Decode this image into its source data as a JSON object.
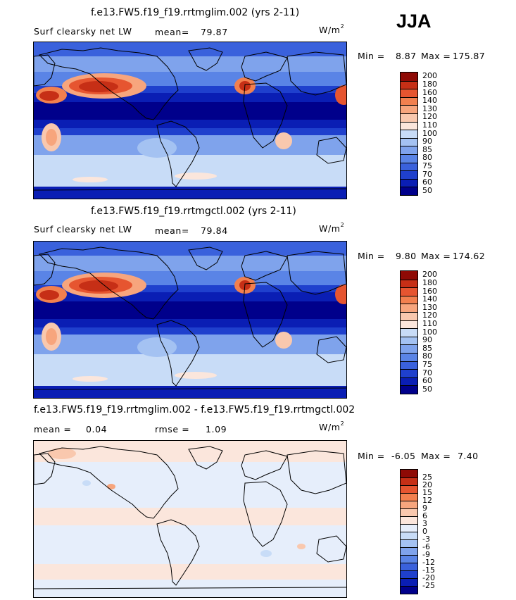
{
  "season": "JJA",
  "colors": {
    "abs": [
      "#00008b",
      "#0a1eb4",
      "#1f40cd",
      "#3a61dc",
      "#5a84e6",
      "#7fa3ec",
      "#a4c2f2",
      "#c8dcf7",
      "#fbe6dc",
      "#f9c8ae",
      "#f7a57d",
      "#f2804f",
      "#e65530",
      "#c62f16",
      "#8f0a05"
    ],
    "diff": [
      "#00008b",
      "#0a1eb4",
      "#1f40cd",
      "#3a61dc",
      "#5a84e6",
      "#7fa3ec",
      "#a4c2f2",
      "#c8dcf7",
      "#e6eefb",
      "#fbe6dc",
      "#f9c8ae",
      "#f7a57d",
      "#f2804f",
      "#e65530",
      "#c62f16",
      "#8f0a05"
    ]
  },
  "panels": [
    {
      "id": "test",
      "title": "f.e13.FW5.f19_f19.rrtmglim.002 (yrs 2-11)",
      "variable": "Surf clearsky net LW",
      "mean_label": "mean=",
      "mean_value": "79.87",
      "units": "W/m",
      "units_sup": "2",
      "min_label": "Min =",
      "min_value": "8.87",
      "max_label": "Max =",
      "max_value": "175.87",
      "colorbar_ticks": [
        "200",
        "180",
        "160",
        "140",
        "130",
        "120",
        "110",
        "100",
        "90",
        "85",
        "80",
        "75",
        "70",
        "60",
        "50"
      ]
    },
    {
      "id": "control",
      "title": "f.e13.FW5.f19_f19.rrtmgctl.002 (yrs 2-11)",
      "variable": "Surf clearsky net LW",
      "mean_label": "mean=",
      "mean_value": "79.84",
      "units": "W/m",
      "units_sup": "2",
      "min_label": "Min =",
      "min_value": "9.80",
      "max_label": "Max =",
      "max_value": "174.62",
      "colorbar_ticks": [
        "200",
        "180",
        "160",
        "140",
        "130",
        "120",
        "110",
        "100",
        "90",
        "85",
        "80",
        "75",
        "70",
        "60",
        "50"
      ]
    },
    {
      "id": "difference",
      "title": "f.e13.FW5.f19_f19.rrtmglim.002 - f.e13.FW5.f19_f19.rrtmgctl.002",
      "mean_label": "mean =",
      "mean_value": "0.04",
      "rmse_label": "rmse =",
      "rmse_value": "1.09",
      "units": "W/m",
      "units_sup": "2",
      "min_label": "Min =",
      "min_value": "-6.05",
      "max_label": "Max =",
      "max_value": "7.40",
      "colorbar_ticks": [
        "25",
        "20",
        "15",
        "12",
        "9",
        "6",
        "3",
        "0",
        "-3",
        "-6",
        "-9",
        "-12",
        "-15",
        "-20",
        "-25"
      ]
    }
  ]
}
